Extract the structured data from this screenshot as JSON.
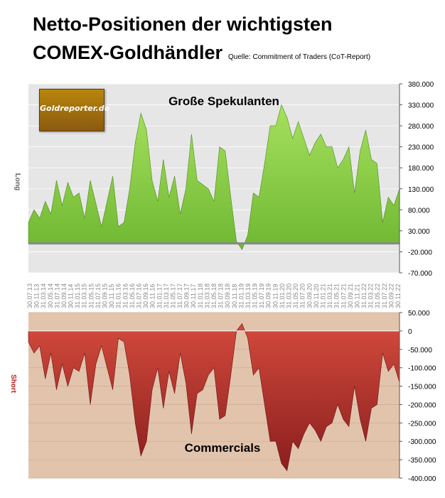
{
  "header": {
    "title_line1": "Netto-Positionen der wichtigsten",
    "title_line2": "COMEX-Goldhändler",
    "source": "Quelle: Commitment of Traders (CoT-Report)"
  },
  "logo_text": "Goldreporter.de",
  "chart_data": [
    {
      "type": "area",
      "title": "Große Spekulanten",
      "ylabel": "Long",
      "ylim": [
        -70000,
        380000
      ],
      "yticks": [
        "380.000",
        "330.000",
        "280.000",
        "230.000",
        "180.000",
        "130.000",
        "80.000",
        "30.000",
        "-20.000",
        "-70.000"
      ],
      "ytick_values": [
        380000,
        330000,
        280000,
        230000,
        180000,
        130000,
        80000,
        30000,
        -20000,
        -70000
      ],
      "color": "#8fd44a",
      "grid": true,
      "series": [
        {
          "values": [
            50000,
            80000,
            60000,
            100000,
            70000,
            150000,
            90000,
            145000,
            110000,
            120000,
            60000,
            150000,
            95000,
            40000,
            100000,
            160000,
            40000,
            50000,
            130000,
            240000,
            310000,
            270000,
            150000,
            100000,
            200000,
            110000,
            160000,
            70000,
            130000,
            260000,
            150000,
            140000,
            130000,
            100000,
            230000,
            220000,
            110000,
            5000,
            -15000,
            20000,
            120000,
            110000,
            190000,
            280000,
            280000,
            330000,
            300000,
            250000,
            290000,
            250000,
            210000,
            240000,
            260000,
            230000,
            230000,
            180000,
            200000,
            230000,
            120000,
            220000,
            270000,
            200000,
            190000,
            50000,
            110000,
            90000,
            130000
          ]
        }
      ]
    },
    {
      "type": "area",
      "title": "Commercials",
      "ylabel": "Short",
      "ylim": [
        -400000,
        50000
      ],
      "yticks": [
        "50.000",
        "0",
        "-50.000",
        "-100.000",
        "-150.000",
        "-200.000",
        "-250.000",
        "-300.000",
        "-350.000",
        "-400.000"
      ],
      "ytick_values": [
        50000,
        0,
        -50000,
        -100000,
        -150000,
        -200000,
        -250000,
        -300000,
        -350000,
        -400000
      ],
      "color": "#b83232",
      "grid": true,
      "series": [
        {
          "values": [
            -30000,
            -60000,
            -40000,
            -130000,
            -60000,
            -160000,
            -90000,
            -150000,
            -100000,
            -110000,
            -60000,
            -200000,
            -90000,
            -40000,
            -100000,
            -160000,
            -20000,
            -30000,
            -120000,
            -250000,
            -340000,
            -300000,
            -160000,
            -100000,
            -210000,
            -110000,
            -170000,
            -60000,
            -140000,
            -280000,
            -170000,
            -160000,
            -120000,
            -100000,
            -240000,
            -230000,
            -120000,
            0,
            20000,
            -20000,
            -120000,
            -100000,
            -200000,
            -300000,
            -300000,
            -360000,
            -380000,
            -300000,
            -320000,
            -280000,
            -250000,
            -270000,
            -300000,
            -260000,
            -250000,
            -200000,
            -240000,
            -260000,
            -150000,
            -240000,
            -300000,
            -210000,
            -200000,
            -60000,
            -110000,
            -90000,
            -140000
          ]
        }
      ]
    }
  ],
  "x_labels": [
    "30.07.13",
    "30.11.13",
    "31.03.14",
    "30.05.14",
    "31.07.14",
    "30.09.14",
    "30.11.14",
    "31.01.15",
    "31.03.15",
    "31.05.15",
    "31.07.15",
    "30.09.15",
    "30.11.15",
    "31.01.16",
    "31.03.16",
    "31.05.16",
    "31.07.16",
    "30.09.16",
    "30.11.16",
    "31.01.17",
    "31.03.17",
    "31.05.17",
    "31.07.17",
    "30.09.17",
    "30.11.17",
    "31.01.18",
    "31.03.18",
    "31.05.18",
    "31.07.18",
    "30.09.18",
    "30.11.18",
    "31.01.19",
    "31.03.19",
    "31.05.19",
    "31.07.19",
    "30.09.19",
    "30.11.19",
    "31.01.20",
    "31.03.20",
    "31.05.20",
    "31.07.20",
    "30.09.20",
    "30.11.20",
    "31.01.21",
    "31.03.21",
    "31.05.21",
    "31.07.21",
    "30.09.21",
    "30.11.21",
    "31.01.22",
    "31.03.22",
    "31.05.22",
    "31.07.22",
    "30.09.22",
    "30.11.22"
  ]
}
